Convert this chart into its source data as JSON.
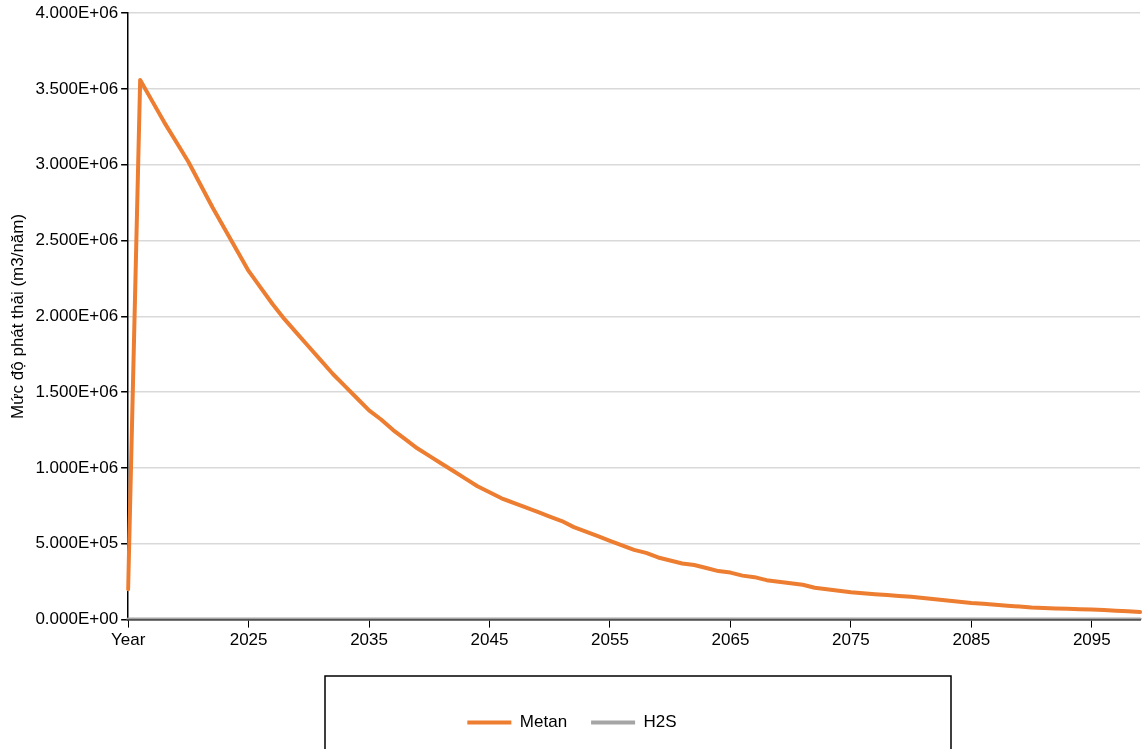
{
  "chart_data": {
    "type": "line",
    "ylabel": "Mức độ phát thải (m3/năm)",
    "categories": [
      "Year",
      null,
      null,
      null,
      null,
      null,
      null,
      null,
      null,
      null,
      "2025",
      null,
      null,
      null,
      null,
      null,
      null,
      null,
      null,
      null,
      "2035",
      null,
      null,
      null,
      null,
      null,
      null,
      null,
      null,
      null,
      "2045",
      null,
      null,
      null,
      null,
      null,
      null,
      null,
      null,
      null,
      "2055",
      null,
      null,
      null,
      null,
      null,
      null,
      null,
      null,
      null,
      "2065",
      null,
      null,
      null,
      null,
      null,
      null,
      null,
      null,
      null,
      "2075",
      null,
      null,
      null,
      null,
      null,
      null,
      null,
      null,
      null,
      "2085",
      null,
      null,
      null,
      null,
      null,
      null,
      null,
      null,
      null,
      "2095",
      null,
      null,
      null,
      null
    ],
    "series": [
      {
        "name": "Metan",
        "color": "#ed7d31",
        "values": [
          200000,
          3560000,
          3420000,
          3280000,
          3150000,
          3020000,
          2870000,
          2720000,
          2580000,
          2440000,
          2300000,
          2190000,
          2080000,
          1980000,
          1890000,
          1800000,
          1710000,
          1620000,
          1540000,
          1460000,
          1380000,
          1320000,
          1250000,
          1190000,
          1130000,
          1080000,
          1030000,
          980000,
          930000,
          880000,
          840000,
          800000,
          770000,
          740000,
          710000,
          680000,
          650000,
          610000,
          580000,
          550000,
          520000,
          490000,
          460000,
          440000,
          410000,
          390000,
          370000,
          360000,
          340000,
          320000,
          310000,
          290000,
          280000,
          260000,
          250000,
          240000,
          230000,
          210000,
          200000,
          190000,
          180000,
          174000,
          168000,
          162000,
          156000,
          150000,
          142000,
          134000,
          126000,
          118000,
          110000,
          104000,
          98000,
          92000,
          86000,
          80000,
          77000,
          74000,
          72000,
          69000,
          66000,
          63000,
          59000,
          55000,
          50000
        ]
      },
      {
        "name": "H2S",
        "color": "#a5a5a5",
        "values": [
          0,
          0,
          0,
          0,
          0,
          0,
          0,
          0,
          0,
          0,
          0,
          0,
          0,
          0,
          0,
          0,
          0,
          0,
          0,
          0,
          0,
          0,
          0,
          0,
          0,
          0,
          0,
          0,
          0,
          0,
          0,
          0,
          0,
          0,
          0,
          0,
          0,
          0,
          0,
          0,
          0,
          0,
          0,
          0,
          0,
          0,
          0,
          0,
          0,
          0,
          0,
          0,
          0,
          0,
          0,
          0,
          0,
          0,
          0,
          0,
          0,
          0,
          0,
          0,
          0,
          0,
          0,
          0,
          0,
          0,
          0,
          0,
          0,
          0,
          0,
          0,
          0,
          0,
          0,
          0,
          0,
          0,
          0,
          0,
          0
        ]
      }
    ],
    "ylim": [
      0,
      4000000
    ],
    "yticks": [
      {
        "value": 0,
        "label": "0.000E+00"
      },
      {
        "value": 500000,
        "label": "5.000E+05"
      },
      {
        "value": 1000000,
        "label": "1.000E+06"
      },
      {
        "value": 1500000,
        "label": "1.500E+06"
      },
      {
        "value": 2000000,
        "label": "2.000E+06"
      },
      {
        "value": 2500000,
        "label": "2.500E+06"
      },
      {
        "value": 3000000,
        "label": "3.000E+06"
      },
      {
        "value": 3500000,
        "label": "3.500E+06"
      },
      {
        "value": 4000000,
        "label": "4.000E+06"
      }
    ],
    "grid": "y",
    "legend": "bottom",
    "marker": "none",
    "line_style": "solid"
  }
}
